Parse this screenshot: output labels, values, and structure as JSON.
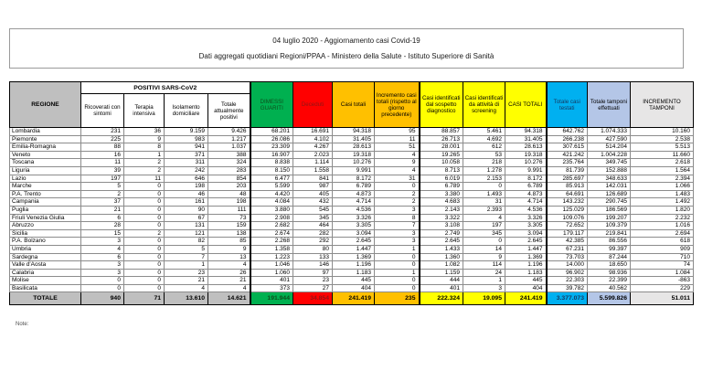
{
  "title": {
    "line1": "04 luglio 2020 - Aggiornamento casi Covid-19",
    "line2": "Dati aggregati quotidiani Regioni/PPAA - Ministero della Salute - Istituto Superiore di Sanità"
  },
  "note_label": "Note:",
  "colors": {
    "header_grey": "#BFBFBF",
    "totals_grey": "#BFBFBF"
  },
  "table": {
    "region_header": "REGIONE",
    "group_header": "POSITIVI SARS-CoV2",
    "positivi_sub_headers": [
      "Ricoverati con sintomi",
      "Terapia intensiva",
      "Isolamento domiciliare",
      "Totale attualmente positivi"
    ],
    "col_headers": [
      {
        "label": "DIMESSI GUARITI",
        "bg": "#00B050",
        "fg": "#0E4D1C"
      },
      {
        "label": "Deceduti",
        "bg": "#FF0000",
        "fg": "#8E1515"
      },
      {
        "label": "Casi totali",
        "bg": "#FFC000",
        "fg": "#000000"
      },
      {
        "label": "Incremento casi totali (rispetto al giorno precedente)",
        "bg": "#FFC000",
        "fg": "#000000"
      },
      {
        "label": "Casi identificati dal sospetto diagnostico",
        "bg": "#FFFF00",
        "fg": "#000000"
      },
      {
        "label": "Casi identificati da attività di screening",
        "bg": "#FFFF00",
        "fg": "#000000"
      },
      {
        "label": "CASI TOTALI",
        "bg": "#FFFF00",
        "fg": "#000000"
      },
      {
        "label": "Totale casi testati",
        "bg": "#00B0F0",
        "fg": "#17375E"
      },
      {
        "label": "Totale tamponi effettuati",
        "bg": "#B4C6E7",
        "fg": "#000000"
      },
      {
        "label": "INCREMENTO TAMPONI",
        "bg": "#E7E6E6",
        "fg": "#000000"
      }
    ],
    "rows": [
      {
        "region": "Lombardia",
        "values": [
          "231",
          "36",
          "9.159",
          "9.426",
          "68.201",
          "16.691",
          "94.318",
          "95",
          "88.857",
          "5.461",
          "94.318",
          "642.762",
          "1.074.333",
          "10.160"
        ]
      },
      {
        "region": "Piemonte",
        "values": [
          "225",
          "9",
          "983",
          "1.217",
          "26.086",
          "4.102",
          "31.405",
          "11",
          "26.713",
          "4.692",
          "31.405",
          "266.238",
          "427.590",
          "2.538"
        ]
      },
      {
        "region": "Emilia-Romagna",
        "values": [
          "88",
          "8",
          "941",
          "1.037",
          "23.309",
          "4.267",
          "28.613",
          "51",
          "28.001",
          "612",
          "28.613",
          "307.615",
          "514.204",
          "5.513"
        ]
      },
      {
        "region": "Veneto",
        "values": [
          "16",
          "1",
          "371",
          "388",
          "16.907",
          "2.023",
          "19.318",
          "4",
          "19.265",
          "53",
          "19.318",
          "421.242",
          "1.004.228",
          "11.660"
        ]
      },
      {
        "region": "Toscana",
        "values": [
          "11",
          "2",
          "311",
          "324",
          "8.838",
          "1.114",
          "10.276",
          "9",
          "10.058",
          "218",
          "10.276",
          "235.764",
          "349.745",
          "2.618"
        ]
      },
      {
        "region": "Liguria",
        "values": [
          "39",
          "2",
          "242",
          "283",
          "8.150",
          "1.558",
          "9.991",
          "4",
          "8.713",
          "1.278",
          "9.991",
          "81.739",
          "152.888",
          "1.564"
        ]
      },
      {
        "region": "Lazio",
        "values": [
          "197",
          "11",
          "646",
          "854",
          "6.477",
          "841",
          "8.172",
          "31",
          "6.019",
          "2.153",
          "8.172",
          "285.697",
          "348.633",
          "2.394"
        ]
      },
      {
        "region": "Marche",
        "values": [
          "5",
          "0",
          "198",
          "203",
          "5.599",
          "987",
          "6.789",
          "0",
          "6.789",
          "0",
          "6.789",
          "85.913",
          "142.031",
          "1.066"
        ]
      },
      {
        "region": "P.A. Trento",
        "values": [
          "2",
          "0",
          "46",
          "48",
          "4.420",
          "405",
          "4.873",
          "2",
          "3.380",
          "1.493",
          "4.873",
          "64.691",
          "126.689",
          "1.483"
        ]
      },
      {
        "region": "Campania",
        "values": [
          "37",
          "0",
          "161",
          "198",
          "4.084",
          "432",
          "4.714",
          "2",
          "4.683",
          "31",
          "4.714",
          "143.232",
          "290.745",
          "1.492"
        ]
      },
      {
        "region": "Puglia",
        "values": [
          "21",
          "0",
          "90",
          "111",
          "3.880",
          "545",
          "4.536",
          "3",
          "2.143",
          "2.393",
          "4.536",
          "125.029",
          "186.569",
          "1.820"
        ]
      },
      {
        "region": "Friuli Venezia Giulia",
        "values": [
          "6",
          "0",
          "67",
          "73",
          "2.908",
          "345",
          "3.326",
          "8",
          "3.322",
          "4",
          "3.326",
          "109.076",
          "199.207",
          "2.232"
        ]
      },
      {
        "region": "Abruzzo",
        "values": [
          "28",
          "0",
          "131",
          "159",
          "2.682",
          "464",
          "3.305",
          "7",
          "3.108",
          "197",
          "3.305",
          "72.652",
          "109.379",
          "1.016"
        ]
      },
      {
        "region": "Sicilia",
        "values": [
          "15",
          "2",
          "121",
          "138",
          "2.674",
          "282",
          "3.094",
          "3",
          "2.749",
          "345",
          "3.094",
          "179.117",
          "219.841",
          "2.694"
        ]
      },
      {
        "region": "P.A. Bolzano",
        "values": [
          "3",
          "0",
          "82",
          "85",
          "2.268",
          "292",
          "2.645",
          "3",
          "2.645",
          "0",
          "2.645",
          "42.385",
          "86.556",
          "618"
        ]
      },
      {
        "region": "Umbria",
        "values": [
          "4",
          "0",
          "5",
          "9",
          "1.358",
          "80",
          "1.447",
          "1",
          "1.433",
          "14",
          "1.447",
          "67.231",
          "99.397",
          "909"
        ]
      },
      {
        "region": "Sardegna",
        "values": [
          "6",
          "0",
          "7",
          "13",
          "1.223",
          "133",
          "1.369",
          "0",
          "1.360",
          "9",
          "1.369",
          "73.703",
          "87.244",
          "710"
        ]
      },
      {
        "region": "Valle d'Aosta",
        "values": [
          "3",
          "0",
          "1",
          "4",
          "1.046",
          "146",
          "1.196",
          "0",
          "1.082",
          "114",
          "1.196",
          "14.000",
          "18.650",
          "74"
        ]
      },
      {
        "region": "Calabria",
        "values": [
          "3",
          "0",
          "23",
          "26",
          "1.060",
          "97",
          "1.183",
          "1",
          "1.159",
          "24",
          "1.183",
          "96.902",
          "98.936",
          "1.084"
        ]
      },
      {
        "region": "Molise",
        "values": [
          "0",
          "0",
          "21",
          "21",
          "401",
          "23",
          "445",
          "0",
          "444",
          "1",
          "445",
          "22.303",
          "22.399",
          "-863"
        ]
      },
      {
        "region": "Basilicata",
        "values": [
          "0",
          "0",
          "4",
          "4",
          "373",
          "27",
          "404",
          "0",
          "401",
          "3",
          "404",
          "39.782",
          "40.562",
          "229"
        ]
      }
    ],
    "totals": {
      "label": "TOTALE",
      "values": [
        "940",
        "71",
        "13.610",
        "14.621",
        "191.944",
        "34.854",
        "241.419",
        "235",
        "222.324",
        "19.095",
        "241.419",
        "3.377.073",
        "5.599.826",
        "51.011"
      ]
    }
  }
}
